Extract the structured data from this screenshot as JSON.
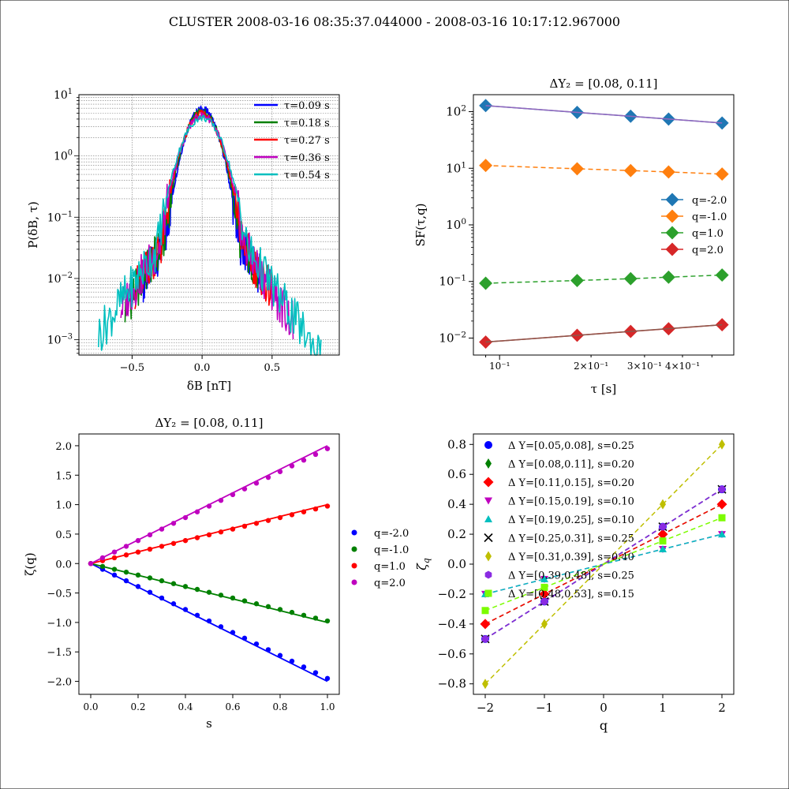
{
  "suptitle": "CLUSTER  2008-03-16 08:35:37.044000 - 2008-03-16 10:17:12.967000",
  "chart_data": [
    {
      "type": "line",
      "panel": "pdf",
      "xlabel": "δB [nT]",
      "ylabel": "P(δB, τ)",
      "xlim": [
        -0.88,
        0.98
      ],
      "ylim_log10": [
        -3.25,
        1.0
      ],
      "yscale": "log",
      "xticks": [
        -0.5,
        0.0,
        0.5
      ],
      "xtick_labels": [
        "−0.5",
        "0.0",
        "0.5"
      ],
      "ytick_exps": [
        1,
        0,
        -1,
        -2,
        -3
      ],
      "legend_loc": "upper right",
      "series": [
        {
          "name": "τ=0.09 s",
          "color": "#0000ff",
          "peak": 5.8,
          "scale": 0.083,
          "xmin": -0.42,
          "xmax": 0.41
        },
        {
          "name": "τ=0.18 s",
          "color": "#008000",
          "peak": 5.3,
          "scale": 0.088,
          "xmin": -0.55,
          "xmax": 0.4
        },
        {
          "name": "τ=0.27 s",
          "color": "#ff0000",
          "peak": 4.9,
          "scale": 0.092,
          "xmin": -0.48,
          "xmax": 0.5
        },
        {
          "name": "τ=0.36 s",
          "color": "#bf00bf",
          "peak": 4.6,
          "scale": 0.096,
          "xmin": -0.58,
          "xmax": 0.65
        },
        {
          "name": "τ=0.54 s",
          "color": "#00bfbf",
          "peak": 4.2,
          "scale": 0.103,
          "xmin": -0.74,
          "xmax": 0.85
        }
      ]
    },
    {
      "type": "line",
      "panel": "sf",
      "title": "ΔY₂ = [0.08, 0.11]",
      "xlabel": "τ [s]",
      "ylabel": "SF(τ,q)",
      "xscale": "log",
      "yscale": "log",
      "x": [
        0.09,
        0.18,
        0.27,
        0.36,
        0.54
      ],
      "ytick_exps": [
        2,
        1,
        0,
        -1,
        -2
      ],
      "xtick_labels": [
        "10⁻¹",
        "2×10⁻¹",
        "3×10⁻¹",
        "4×10⁻¹"
      ],
      "legend_loc": "center right",
      "series": [
        {
          "name": "q=-2.0",
          "color": "#1f77b4",
          "values": [
            128,
            97,
            83,
            74,
            63
          ]
        },
        {
          "name": "q=-1.0",
          "color": "#ff7f0e",
          "values": [
            11.2,
            9.8,
            9.1,
            8.6,
            7.9
          ]
        },
        {
          "name": "q=1.0",
          "color": "#2ca02c",
          "values": [
            0.093,
            0.104,
            0.112,
            0.119,
            0.13
          ]
        },
        {
          "name": "q=2.0",
          "color": "#d62728",
          "values": [
            0.0085,
            0.0112,
            0.0131,
            0.0146,
            0.0172
          ]
        }
      ]
    },
    {
      "type": "scatter",
      "panel": "zeta",
      "title": "ΔY₂ = [0.08, 0.11]",
      "xlabel": "s",
      "ylabel": "ζ(q)",
      "xlim": [
        -0.05,
        1.05
      ],
      "ylim": [
        -2.22,
        2.2
      ],
      "xticks": [
        0.0,
        0.2,
        0.4,
        0.6,
        0.8,
        1.0
      ],
      "yticks": [
        -2.0,
        -1.5,
        -1.0,
        -0.5,
        0.0,
        0.5,
        1.0,
        1.5,
        2.0
      ],
      "ytick_labels": [
        "−2.0",
        "−1.5",
        "−1.0",
        "−0.5",
        "0.0",
        "0.5",
        "1.0",
        "1.5",
        "2.0"
      ],
      "legend_loc": "outside right",
      "series": [
        {
          "name": "q=-2.0",
          "color": "#0000ff",
          "q": -2.0,
          "slope": -2.0,
          "point_slope": -1.95
        },
        {
          "name": "q=-1.0",
          "color": "#008000",
          "q": -1.0,
          "slope": -1.0,
          "point_slope": -0.975
        },
        {
          "name": "q=1.0",
          "color": "#ff0000",
          "q": 1.0,
          "slope": 1.0,
          "point_slope": 0.975
        },
        {
          "name": "q=2.0",
          "color": "#bf00bf",
          "q": 2.0,
          "slope": 2.0,
          "point_slope": 1.95
        }
      ]
    },
    {
      "type": "line",
      "panel": "zetaq",
      "xlabel": "q",
      "ylabel": "ζq",
      "xlim": [
        -2.2,
        2.2
      ],
      "ylim": [
        -0.87,
        0.87
      ],
      "xticks": [
        -2,
        -1,
        0,
        1,
        2
      ],
      "xtick_labels": [
        "−2",
        "−1",
        "0",
        "1",
        "2"
      ],
      "yticks": [
        -0.8,
        -0.6,
        -0.4,
        -0.2,
        0.0,
        0.2,
        0.4,
        0.6,
        0.8
      ],
      "ytick_labels": [
        "−0.8",
        "−0.6",
        "−0.4",
        "−0.2",
        "0.0",
        "0.2",
        "0.4",
        "0.6",
        "0.8"
      ],
      "q": [
        -2,
        -1,
        0,
        1,
        2
      ],
      "legend_loc": "upper left",
      "series": [
        {
          "name": "Δ Y=[0.05,0.08], s=0.25",
          "color": "#0000ff",
          "marker": "circle",
          "slope": 0.25
        },
        {
          "name": "Δ Y=[0.08,0.11], s=0.20",
          "color": "#008000",
          "marker": "thin-diamond",
          "slope": 0.2
        },
        {
          "name": "Δ Y=[0.11,0.15], s=0.20",
          "color": "#ff0000",
          "marker": "diamond",
          "slope": 0.2
        },
        {
          "name": "Δ Y=[0.15,0.19], s=0.10",
          "color": "#bf00bf",
          "marker": "triangle-down",
          "slope": 0.1
        },
        {
          "name": "Δ Y=[0.19,0.25], s=0.10",
          "color": "#00bfbf",
          "marker": "triangle-up",
          "slope": 0.1
        },
        {
          "name": "Δ Y=[0.25,0.31], s=0.25",
          "color": "#000000",
          "marker": "x",
          "slope": 0.25
        },
        {
          "name": "Δ Y=[0.31,0.39], s=0.40",
          "color": "#bfbf00",
          "marker": "thin-diamond",
          "slope": 0.4
        },
        {
          "name": "Δ Y=[0.39,0.48], s=0.25",
          "color": "#8a2be2",
          "marker": "hexagon",
          "slope": 0.25
        },
        {
          "name": "Δ Y=[0.48,0.53], s=0.15",
          "color": "#7cfc00",
          "marker": "square",
          "slope": 0.155
        }
      ]
    }
  ]
}
